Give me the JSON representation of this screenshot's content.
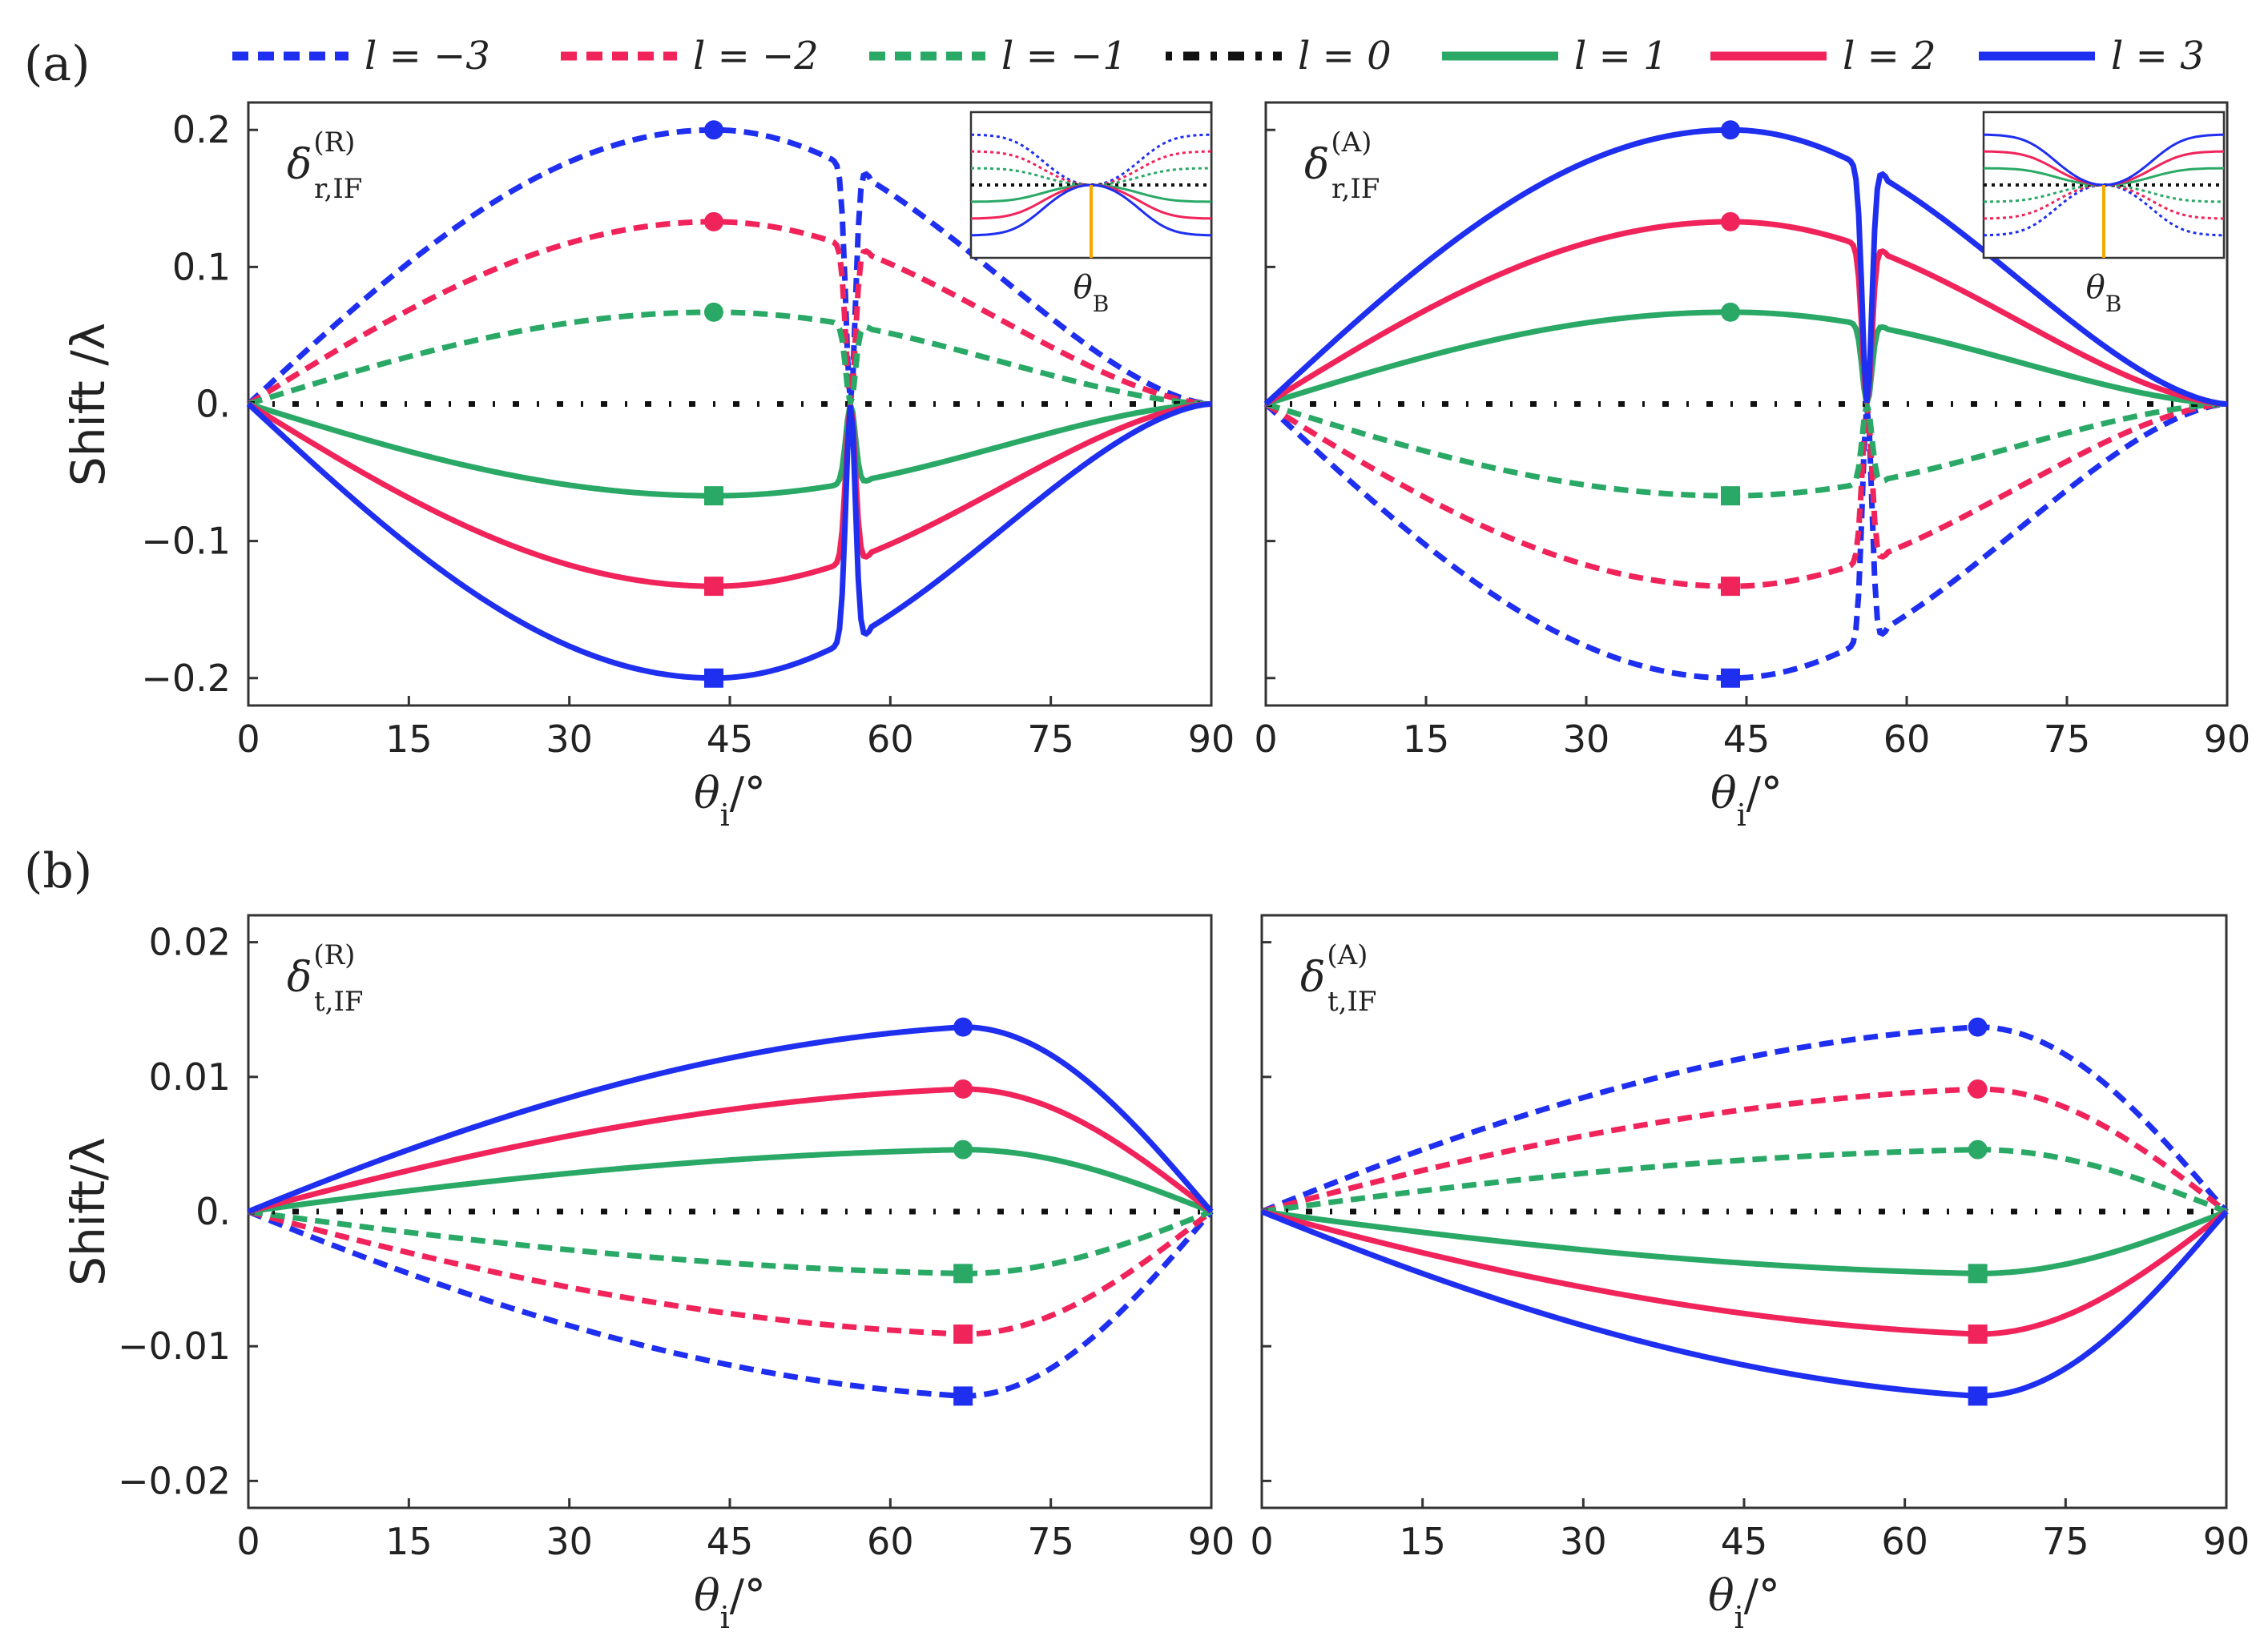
{
  "figure": {
    "panel_a_label": "(a)",
    "panel_b_label": "(b)",
    "ylabel_a": "Shift /λ",
    "ylabel_b": "Shift/λ",
    "xlabel_main": "θ",
    "xlabel_sub": "i",
    "xlabel_unit": "/°",
    "inset_label_main": "θ",
    "inset_label_sub": "B",
    "legend": [
      {
        "text": "l = −3",
        "color": "#1f2ff0",
        "style": "dashed"
      },
      {
        "text": "l = −2",
        "color": "#f0245a",
        "style": "dashed"
      },
      {
        "text": "l = −1",
        "color": "#2aa866",
        "style": "dashed"
      },
      {
        "text": "l = 0",
        "color": "#111111",
        "style": "dashdot"
      },
      {
        "text": "l = 1",
        "color": "#2aa866",
        "style": "solid"
      },
      {
        "text": "l = 2",
        "color": "#f0245a",
        "style": "solid"
      },
      {
        "text": "l = 3",
        "color": "#1f2ff0",
        "style": "solid"
      }
    ]
  },
  "chart_data": [
    {
      "type": "line",
      "id": "a-left",
      "title_main": "δ",
      "title_sub": "r,IF",
      "title_sup": "(R)",
      "xlim": [
        0,
        90
      ],
      "ylim": [
        -0.22,
        0.22
      ],
      "xticks": [
        0,
        15,
        30,
        45,
        60,
        75,
        90
      ],
      "yticks": [
        0.2,
        0.1,
        0,
        -0.1,
        -0.2
      ],
      "ytick_labels": [
        "0.2",
        "0.1",
        "0.",
        "-0.1",
        "-0.2"
      ],
      "peak_angle": 43.5,
      "brewster_angle": 56.3,
      "series": [
        {
          "l": -3,
          "peak": 0.2,
          "marker": "circle"
        },
        {
          "l": -2,
          "peak": 0.133,
          "marker": "circle"
        },
        {
          "l": -1,
          "peak": 0.067,
          "marker": "circle"
        },
        {
          "l": 0,
          "peak": 0,
          "marker": "none"
        },
        {
          "l": 1,
          "peak": -0.067,
          "marker": "square"
        },
        {
          "l": 2,
          "peak": -0.133,
          "marker": "square"
        },
        {
          "l": 3,
          "peak": -0.2,
          "marker": "square"
        }
      ],
      "inset": true
    },
    {
      "type": "line",
      "id": "a-right",
      "title_main": "δ",
      "title_sub": "r,IF",
      "title_sup": "(A)",
      "xlim": [
        0,
        90
      ],
      "ylim": [
        -0.22,
        0.22
      ],
      "xticks": [
        0,
        15,
        30,
        45,
        60,
        75,
        90
      ],
      "yticks": [
        0.2,
        0.1,
        0,
        -0.1,
        -0.2
      ],
      "peak_angle": 43.5,
      "brewster_angle": 56.3,
      "series": [
        {
          "l": -3,
          "peak": -0.2,
          "marker": "square"
        },
        {
          "l": -2,
          "peak": -0.133,
          "marker": "square"
        },
        {
          "l": -1,
          "peak": -0.067,
          "marker": "square"
        },
        {
          "l": 0,
          "peak": 0,
          "marker": "none"
        },
        {
          "l": 1,
          "peak": 0.067,
          "marker": "circle"
        },
        {
          "l": 2,
          "peak": 0.133,
          "marker": "circle"
        },
        {
          "l": 3,
          "peak": 0.2,
          "marker": "circle"
        }
      ],
      "inset": true
    },
    {
      "type": "line",
      "id": "b-left",
      "title_main": "δ",
      "title_sub": "t,IF",
      "title_sup": "(R)",
      "xlim": [
        0,
        90
      ],
      "ylim": [
        -0.022,
        0.022
      ],
      "xticks": [
        0,
        15,
        30,
        45,
        60,
        75,
        90
      ],
      "yticks": [
        0.02,
        0.01,
        0,
        -0.01,
        -0.02
      ],
      "ytick_labels": [
        "0.02",
        "0.01",
        "0.",
        "-0.01",
        "-0.02"
      ],
      "peak_angle": 66.8,
      "series": [
        {
          "l": -3,
          "peak": -0.0137,
          "marker": "square"
        },
        {
          "l": -2,
          "peak": -0.0091,
          "marker": "square"
        },
        {
          "l": -1,
          "peak": -0.0046,
          "marker": "square"
        },
        {
          "l": 0,
          "peak": 0,
          "marker": "none"
        },
        {
          "l": 1,
          "peak": 0.0046,
          "marker": "circle"
        },
        {
          "l": 2,
          "peak": 0.0091,
          "marker": "circle"
        },
        {
          "l": 3,
          "peak": 0.0137,
          "marker": "circle"
        }
      ],
      "inset": false
    },
    {
      "type": "line",
      "id": "b-right",
      "title_main": "δ",
      "title_sub": "t,IF",
      "title_sup": "(A)",
      "xlim": [
        0,
        90
      ],
      "ylim": [
        -0.022,
        0.022
      ],
      "xticks": [
        0,
        15,
        30,
        45,
        60,
        75,
        90
      ],
      "yticks": [
        0.02,
        0.01,
        0,
        -0.01,
        -0.02
      ],
      "peak_angle": 66.8,
      "series": [
        {
          "l": -3,
          "peak": 0.0137,
          "marker": "circle"
        },
        {
          "l": -2,
          "peak": 0.0091,
          "marker": "circle"
        },
        {
          "l": -1,
          "peak": 0.0046,
          "marker": "circle"
        },
        {
          "l": 0,
          "peak": 0,
          "marker": "none"
        },
        {
          "l": 1,
          "peak": -0.0046,
          "marker": "square"
        },
        {
          "l": 2,
          "peak": -0.0091,
          "marker": "square"
        },
        {
          "l": 3,
          "peak": -0.0137,
          "marker": "square"
        }
      ],
      "inset": false
    }
  ]
}
